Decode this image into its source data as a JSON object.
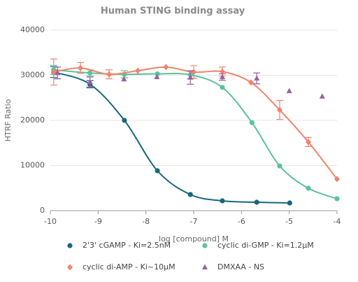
{
  "chart_data": {
    "type": "scatter",
    "title": "Human STING binding assay",
    "x_label": "log [compound] M",
    "y_label": "HTRF Ratio",
    "xlim": [
      -10,
      -4
    ],
    "xticks": [
      -10,
      -9,
      -8,
      -7,
      -6,
      -5,
      -4
    ],
    "ylim": [
      0,
      40000
    ],
    "yticks": [
      0,
      10000,
      20000,
      30000,
      40000
    ],
    "series": [
      {
        "name": "2'3' cGAMP - Ki=2.5nM",
        "color": "#17687a",
        "marker": "circle",
        "curve": true,
        "x": [
          -9.93,
          -9.17,
          -8.45,
          -7.76,
          -7.07,
          -6.4,
          -5.68,
          -4.99
        ],
        "values": [
          30700,
          28000,
          20000,
          8840,
          3570,
          2170,
          1860,
          1700
        ],
        "errors": [
          1200,
          800,
          null,
          null,
          null,
          null,
          null,
          null
        ]
      },
      {
        "name": "cyclic di-GMP - Ki=1.2µM",
        "color": "#5cc29a",
        "marker": "circle",
        "curve": true,
        "x": [
          -9.93,
          -9.17,
          -8.45,
          -7.76,
          -7.07,
          -6.4,
          -5.78,
          -5.2,
          -4.6,
          -4.0
        ],
        "values": [
          31200,
          30500,
          30200,
          30300,
          30100,
          27300,
          19500,
          9900,
          4960,
          2640
        ],
        "errors": [
          1000,
          700,
          800,
          null,
          900,
          null,
          null,
          null,
          null,
          null
        ]
      },
      {
        "name": "cyclic di-AMP - Ki~10µM",
        "color": "#f0836b",
        "marker": "diamond",
        "curve": true,
        "x": [
          -9.93,
          -9.37,
          -8.77,
          -8.17,
          -7.58,
          -7.0,
          -6.4,
          -5.8,
          -5.2,
          -4.6,
          -4.0
        ],
        "values": [
          30700,
          31600,
          30200,
          31000,
          31800,
          30700,
          30800,
          28400,
          22300,
          15200,
          7000
        ],
        "errors": [
          2900,
          1200,
          1000,
          null,
          null,
          1400,
          1000,
          null,
          2100,
          1000,
          null
        ]
      },
      {
        "name": "DMXAA - NS",
        "color": "#9b5fa0",
        "marker": "triangle",
        "curve": false,
        "x": [
          -9.85,
          -9.17,
          -8.46,
          -7.77,
          -7.07,
          -6.4,
          -5.68,
          -5.0,
          -4.31
        ],
        "values": [
          30500,
          28500,
          29100,
          29600,
          29500,
          29600,
          29300,
          26500,
          25300
        ],
        "errors": [
          1300,
          1100,
          null,
          null,
          1500,
          700,
          1200,
          null,
          null
        ]
      }
    ]
  }
}
